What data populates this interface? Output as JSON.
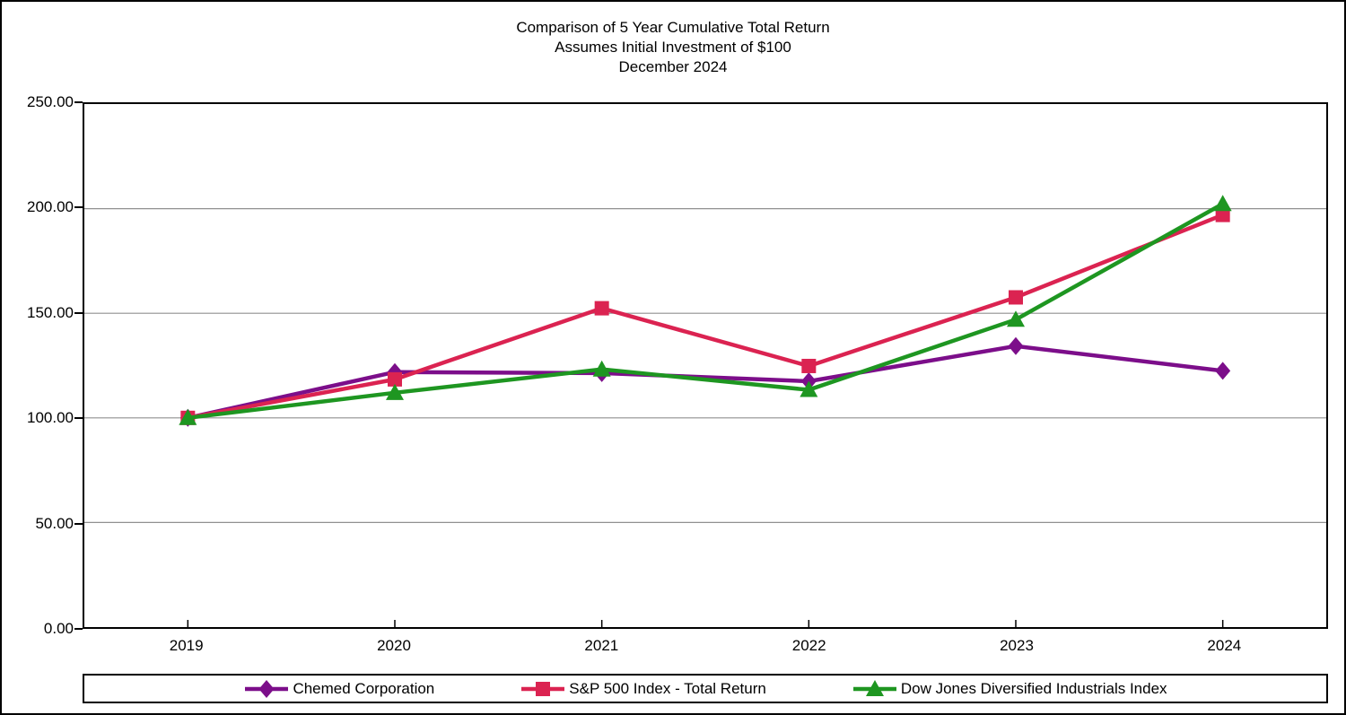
{
  "title": {
    "line1": "Comparison of 5 Year Cumulative Total Return",
    "line2": "Assumes Initial Investment of $100",
    "line3": "December 2024"
  },
  "chart_data": {
    "type": "line",
    "categories": [
      "2019",
      "2020",
      "2021",
      "2022",
      "2023",
      "2024"
    ],
    "series": [
      {
        "name": "Chemed Corporation",
        "marker": "diamond",
        "color": "#7C0E8A",
        "values": [
          100.0,
          121.9,
          121.4,
          117.5,
          134.3,
          122.5
        ]
      },
      {
        "name": "S&P 500 Index - Total Return",
        "marker": "square",
        "color": "#DB2351",
        "values": [
          100.0,
          118.4,
          152.4,
          124.8,
          157.6,
          197.0
        ]
      },
      {
        "name": "Dow Jones Diversified Industrials Index",
        "marker": "triangle",
        "color": "#1E9621",
        "values": [
          100.0,
          112.0,
          123.2,
          113.4,
          147.0,
          202.3
        ]
      }
    ],
    "xlabel": "",
    "ylabel": "",
    "ylim": [
      0,
      250
    ],
    "y_tick_step": 50,
    "y_tick_labels": [
      "0.00",
      "50.00",
      "100.00",
      "150.00",
      "200.00",
      "250.00"
    ],
    "grid": true,
    "gridline_color": "#909090",
    "axis_color": "#000000",
    "legend_position": "bottom"
  }
}
